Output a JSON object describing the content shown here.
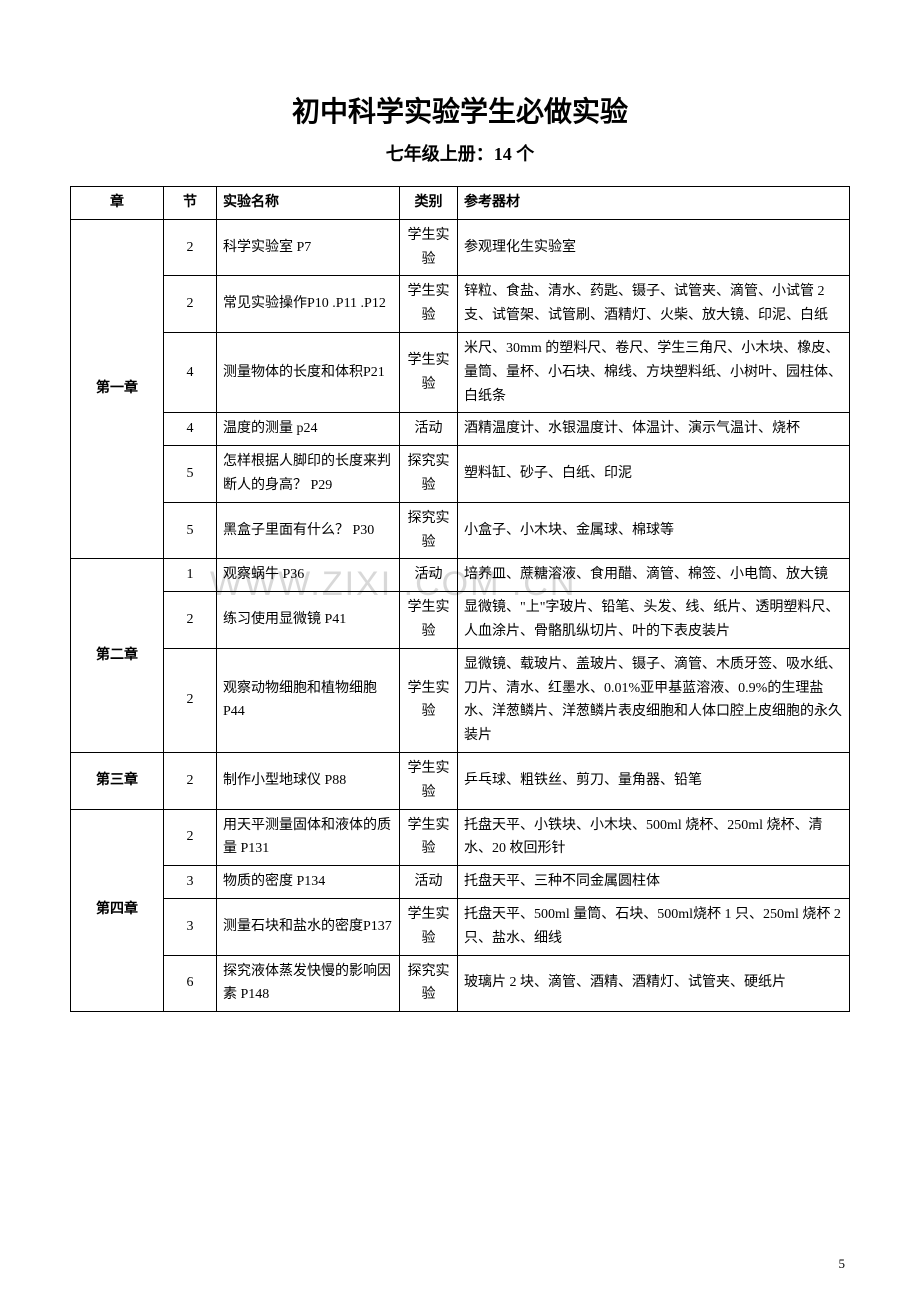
{
  "title": "初中科学实验学生必做实验",
  "subtitle": "七年级上册：14 个",
  "watermark": "WWW.ZIXI .COM .CN",
  "page_number": "5",
  "headers": {
    "chapter": "章",
    "section": "节",
    "name": "实验名称",
    "type": "类别",
    "equip": "参考器材"
  },
  "chapters": [
    {
      "label": "第一章",
      "rows": [
        {
          "section": "2",
          "name": "科学实验室 P7",
          "type": "学生实验",
          "equip": "参观理化生实验室"
        },
        {
          "section": "2",
          "name": "常见实验操作P10 .P11 .P12",
          "type": "学生实验",
          "equip": "锌粒、食盐、清水、药匙、镊子、试管夹、滴管、小试管 2 支、试管架、试管刷、酒精灯、火柴、放大镜、印泥、白纸"
        },
        {
          "section": "4",
          "name": "测量物体的长度和体积P21",
          "type": "学生实验",
          "equip": "米尺、30mm 的塑料尺、卷尺、学生三角尺、小木块、橡皮、量筒、量杯、小石块、棉线、方块塑料纸、小树叶、园柱体、白纸条"
        },
        {
          "section": "4",
          "name": "温度的测量 p24",
          "type": "活动",
          "equip": "酒精温度计、水银温度计、体温计、演示气温计、烧杯"
        },
        {
          "section": "5",
          "name": "怎样根据人脚印的长度来判断人的身高？  P29",
          "type": "探究实验",
          "equip": "塑料缸、砂子、白纸、印泥"
        },
        {
          "section": "5",
          "name": "黑盒子里面有什么？  P30",
          "type": "探究实验",
          "equip": "小盒子、小木块、金属球、棉球等"
        }
      ]
    },
    {
      "label": "第二章",
      "rows": [
        {
          "section": "1",
          "name": "观察蜗牛 P36",
          "type": "活动",
          "equip": "培养皿、蔗糖溶液、食用醋、滴管、棉签、小电筒、放大镜"
        },
        {
          "section": "2",
          "name": "练习使用显微镜 P41",
          "type": "学生实验",
          "equip": "显微镜、\"上\"字玻片、铅笔、头发、线、纸片、透明塑料尺、人血涂片、骨骼肌纵切片、叶的下表皮装片"
        },
        {
          "section": "2",
          "name": "观察动物细胞和植物细胞 P44",
          "type": "学生实验",
          "equip": "显微镜、载玻片、盖玻片、镊子、滴管、木质牙签、吸水纸、刀片、清水、红墨水、0.01%亚甲基蓝溶液、0.9%的生理盐水、洋葱鳞片、洋葱鳞片表皮细胞和人体口腔上皮细胞的永久装片"
        }
      ]
    },
    {
      "label": "第三章",
      "rows": [
        {
          "section": "2",
          "name": "制作小型地球仪 P88",
          "type": "学生实验",
          "equip": "乒乓球、粗铁丝、剪刀、量角器、铅笔"
        }
      ]
    },
    {
      "label": "第四章",
      "rows": [
        {
          "section": "2",
          "name": "用天平测量固体和液体的质量 P131",
          "type": "学生实验",
          "equip": "托盘天平、小铁块、小木块、500ml 烧杯、250ml 烧杯、清水、20 枚回形针"
        },
        {
          "section": "3",
          "name": "物质的密度 P134",
          "type": "活动",
          "equip": "托盘天平、三种不同金属圆柱体"
        },
        {
          "section": "3",
          "name": "测量石块和盐水的密度P137",
          "type": "学生实验",
          "equip": "托盘天平、500ml 量筒、石块、500ml烧杯 1 只、250ml 烧杯 2 只、盐水、细线"
        },
        {
          "section": "6",
          "name": "探究液体蒸发快慢的影响因素 P148",
          "type": "探究实验",
          "equip": "玻璃片 2 块、滴管、酒精、酒精灯、试管夹、硬纸片"
        }
      ]
    }
  ]
}
